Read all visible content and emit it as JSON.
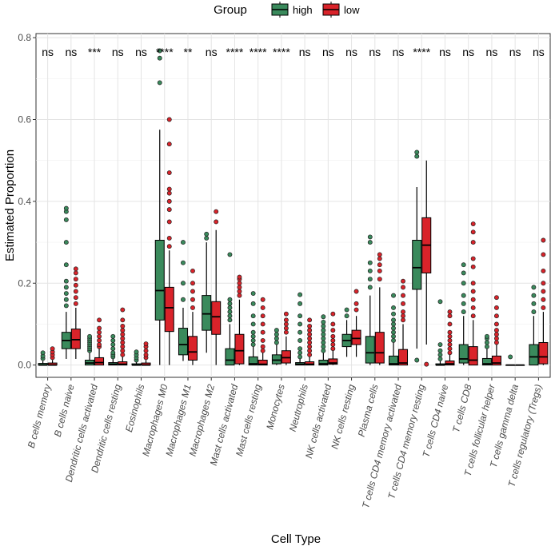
{
  "chart_data": {
    "type": "boxplot",
    "title": "",
    "xlabel": "Cell Type",
    "ylabel": "Estimated Proportion",
    "ylim": [
      -0.03,
      0.81
    ],
    "y_ticks": [
      0.0,
      0.2,
      0.4,
      0.6,
      0.8
    ],
    "y_tick_labels": [
      "0.0",
      "0.2",
      "0.4",
      "0.6",
      "0.8"
    ],
    "legend": {
      "title": "Group",
      "position": "top",
      "entries": [
        {
          "name": "high",
          "color": "#3a8a5c"
        },
        {
          "name": "low",
          "color": "#d9232a"
        }
      ]
    },
    "categories": [
      "B cells memory",
      "B cells naive",
      "Dendritic cells activated",
      "Dendritic cells resting",
      "Eosinophils",
      "Macrophages M0",
      "Macrophages M1",
      "Macrophages M2",
      "Mast cells activated",
      "Mast cells resting",
      "Monocytes",
      "Neutrophils",
      "NK cells activated",
      "NK cells resting",
      "Plasma cells",
      "T cells CD4 memory activated",
      "T cells CD4 memory resting",
      "T cells CD4 naive",
      "T cells CD8",
      "T cells follicular helper",
      "T cells gamma delta",
      "T cells regulatory (Tregs)"
    ],
    "significance": [
      "ns",
      "ns",
      "***",
      "ns",
      "ns",
      "****",
      "**",
      "ns",
      "****",
      "****",
      "****",
      "ns",
      "ns",
      "ns",
      "ns",
      "ns",
      "****",
      "ns",
      "ns",
      "ns",
      "ns",
      "ns"
    ],
    "series": [
      {
        "name": "high",
        "boxes": [
          {
            "min": 0,
            "q1": 0,
            "median": 0,
            "q3": 0.004,
            "max": 0.01,
            "outliers": [
              0.016,
              0.022,
              0.03
            ]
          },
          {
            "min": 0.015,
            "q1": 0.04,
            "median": 0.06,
            "q3": 0.08,
            "max": 0.13,
            "outliers": [
              0.145,
              0.16,
              0.175,
              0.19,
              0.205,
              0.245,
              0.3,
              0.355,
              0.375,
              0.383
            ]
          },
          {
            "min": 0,
            "q1": 0,
            "median": 0.005,
            "q3": 0.012,
            "max": 0.03,
            "outliers": [
              0.035,
              0.04,
              0.045,
              0.05,
              0.055,
              0.06,
              0.065,
              0.07
            ]
          },
          {
            "min": 0,
            "q1": 0,
            "median": 0.002,
            "q3": 0.006,
            "max": 0.015,
            "outliers": [
              0.02,
              0.025,
              0.03,
              0.04,
              0.05,
              0.06,
              0.07
            ]
          },
          {
            "min": 0,
            "q1": 0,
            "median": 0,
            "q3": 0.003,
            "max": 0.008,
            "outliers": [
              0.012,
              0.018,
              0.025,
              0.032
            ]
          },
          {
            "min": 0,
            "q1": 0.11,
            "median": 0.182,
            "q3": 0.305,
            "max": 0.575,
            "outliers": [
              0.69,
              0.75,
              0.768
            ]
          },
          {
            "min": 0.01,
            "q1": 0.025,
            "median": 0.05,
            "q3": 0.09,
            "max": 0.14,
            "outliers": [
              0.16,
              0.2,
              0.25,
              0.3
            ]
          },
          {
            "min": 0.03,
            "q1": 0.085,
            "median": 0.125,
            "q3": 0.17,
            "max": 0.3,
            "outliers": [
              0.31,
              0.32
            ]
          },
          {
            "min": 0,
            "q1": 0,
            "median": 0.012,
            "q3": 0.04,
            "max": 0.1,
            "outliers": [
              0.11,
              0.12,
              0.13,
              0.14,
              0.15,
              0.16,
              0.27
            ]
          },
          {
            "min": 0,
            "q1": 0,
            "median": 0.003,
            "q3": 0.02,
            "max": 0.045,
            "outliers": [
              0.05,
              0.06,
              0.07,
              0.08,
              0.1,
              0.12,
              0.15,
              0.175
            ]
          },
          {
            "min": 0,
            "q1": 0.003,
            "median": 0.012,
            "q3": 0.025,
            "max": 0.05,
            "outliers": [
              0.055,
              0.065,
              0.075,
              0.085
            ]
          },
          {
            "min": 0,
            "q1": 0,
            "median": 0.002,
            "q3": 0.006,
            "max": 0.015,
            "outliers": [
              0.02,
              0.03,
              0.04,
              0.06,
              0.08,
              0.1,
              0.12,
              0.15,
              0.172
            ]
          },
          {
            "min": 0,
            "q1": 0,
            "median": 0.003,
            "q3": 0.012,
            "max": 0.03,
            "outliers": [
              0.035,
              0.045,
              0.055,
              0.065,
              0.075,
              0.085,
              0.095,
              0.105,
              0.118
            ]
          },
          {
            "min": 0.02,
            "q1": 0.045,
            "median": 0.06,
            "q3": 0.075,
            "max": 0.11,
            "outliers": [
              0.12,
              0.135
            ]
          },
          {
            "min": 0,
            "q1": 0.005,
            "median": 0.03,
            "q3": 0.07,
            "max": 0.17,
            "outliers": [
              0.19,
              0.21,
              0.23,
              0.25,
              0.3,
              0.313
            ]
          },
          {
            "min": 0,
            "q1": 0,
            "median": 0.003,
            "q3": 0.022,
            "max": 0.055,
            "outliers": [
              0.06,
              0.07,
              0.08,
              0.09,
              0.1,
              0.11,
              0.125,
              0.14,
              0.17
            ]
          },
          {
            "min": 0.04,
            "q1": 0.185,
            "median": 0.238,
            "q3": 0.305,
            "max": 0.435,
            "outliers": [
              0.012,
              0.51,
              0.52
            ]
          },
          {
            "min": 0,
            "q1": 0,
            "median": 0,
            "q3": 0.003,
            "max": 0.01,
            "outliers": [
              0.015,
              0.025,
              0.035,
              0.05,
              0.155
            ]
          },
          {
            "min": 0,
            "q1": 0.005,
            "median": 0.015,
            "q3": 0.05,
            "max": 0.12,
            "outliers": [
              0.13,
              0.15,
              0.17,
              0.2,
              0.225,
              0.245
            ]
          },
          {
            "min": 0,
            "q1": 0,
            "median": 0.003,
            "q3": 0.016,
            "max": 0.04,
            "outliers": [
              0.045,
              0.055,
              0.065,
              0.07
            ]
          },
          {
            "min": 0,
            "q1": 0,
            "median": 0,
            "q3": 0,
            "max": 0,
            "outliers": [
              0.02
            ]
          },
          {
            "min": 0,
            "q1": 0,
            "median": 0.02,
            "q3": 0.05,
            "max": 0.12,
            "outliers": [
              0.13,
              0.15,
              0.17,
              0.19
            ]
          }
        ]
      },
      {
        "name": "low",
        "boxes": [
          {
            "min": 0,
            "q1": 0,
            "median": 0,
            "q3": 0.005,
            "max": 0.012,
            "outliers": [
              0.018,
              0.025,
              0.032,
              0.04
            ]
          },
          {
            "min": 0.015,
            "q1": 0.04,
            "median": 0.062,
            "q3": 0.088,
            "max": 0.14,
            "outliers": [
              0.15,
              0.165,
              0.18,
              0.195,
              0.21,
              0.225,
              0.235
            ]
          },
          {
            "min": 0,
            "q1": 0,
            "median": 0.006,
            "q3": 0.018,
            "max": 0.04,
            "outliers": [
              0.045,
              0.05,
              0.06,
              0.07,
              0.08,
              0.09,
              0.11
            ]
          },
          {
            "min": 0,
            "q1": 0,
            "median": 0.002,
            "q3": 0.008,
            "max": 0.02,
            "outliers": [
              0.025,
              0.035,
              0.045,
              0.055,
              0.065,
              0.075,
              0.085,
              0.095,
              0.11,
              0.135
            ]
          },
          {
            "min": 0,
            "q1": 0,
            "median": 0,
            "q3": 0.005,
            "max": 0.012,
            "outliers": [
              0.018,
              0.025,
              0.035,
              0.045,
              0.052
            ]
          },
          {
            "min": 0,
            "q1": 0.082,
            "median": 0.14,
            "q3": 0.19,
            "max": 0.28,
            "outliers": [
              0.29,
              0.31,
              0.35,
              0.38,
              0.4,
              0.42,
              0.43,
              0.47,
              0.54,
              0.6
            ]
          },
          {
            "min": 0,
            "q1": 0.012,
            "median": 0.032,
            "q3": 0.07,
            "max": 0.13,
            "outliers": [
              0.14,
              0.16,
              0.18,
              0.2,
              0.23
            ]
          },
          {
            "min": 0,
            "q1": 0.075,
            "median": 0.118,
            "q3": 0.155,
            "max": 0.33,
            "outliers": [
              0.35,
              0.375
            ]
          },
          {
            "min": 0,
            "q1": 0.003,
            "median": 0.035,
            "q3": 0.075,
            "max": 0.16,
            "outliers": [
              0.17,
              0.18,
              0.19,
              0.2,
              0.21,
              0.215
            ]
          },
          {
            "min": 0,
            "q1": 0,
            "median": 0.002,
            "q3": 0.012,
            "max": 0.03,
            "outliers": [
              0.035,
              0.045,
              0.06,
              0.08,
              0.1,
              0.12,
              0.14,
              0.16
            ]
          },
          {
            "min": 0,
            "q1": 0.005,
            "median": 0.018,
            "q3": 0.035,
            "max": 0.07,
            "outliers": [
              0.08,
              0.09,
              0.1,
              0.11,
              0.125
            ]
          },
          {
            "min": 0,
            "q1": 0,
            "median": 0.002,
            "q3": 0.008,
            "max": 0.02,
            "outliers": [
              0.025,
              0.035,
              0.045,
              0.055,
              0.065,
              0.075,
              0.085,
              0.095,
              0.11
            ]
          },
          {
            "min": 0,
            "q1": 0.002,
            "median": 0.005,
            "q3": 0.015,
            "max": 0.035,
            "outliers": [
              0.04,
              0.05,
              0.06,
              0.07,
              0.085,
              0.1,
              0.125
            ]
          },
          {
            "min": 0.02,
            "q1": 0.05,
            "median": 0.065,
            "q3": 0.085,
            "max": 0.12,
            "outliers": [
              0.135,
              0.15,
              0.18
            ]
          },
          {
            "min": 0,
            "q1": 0.005,
            "median": 0.03,
            "q3": 0.08,
            "max": 0.19,
            "outliers": [
              0.21,
              0.23,
              0.245,
              0.26,
              0.27
            ]
          },
          {
            "min": 0,
            "q1": 0,
            "median": 0.005,
            "q3": 0.038,
            "max": 0.1,
            "outliers": [
              0.11,
              0.12,
              0.13,
              0.15,
              0.17,
              0.19,
              0.205
            ]
          },
          {
            "min": 0.05,
            "q1": 0.225,
            "median": 0.293,
            "q3": 0.36,
            "max": 0.5,
            "outliers": [
              0.002
            ]
          },
          {
            "min": 0,
            "q1": 0,
            "median": 0.003,
            "q3": 0.01,
            "max": 0.025,
            "outliers": [
              0.03,
              0.04,
              0.05,
              0.06,
              0.07,
              0.08,
              0.1,
              0.12,
              0.13
            ]
          },
          {
            "min": 0,
            "q1": 0,
            "median": 0.012,
            "q3": 0.045,
            "max": 0.11,
            "outliers": [
              0.12,
              0.14,
              0.16,
              0.18,
              0.2,
              0.24,
              0.26,
              0.3,
              0.325,
              0.345
            ]
          },
          {
            "min": 0,
            "q1": 0,
            "median": 0.005,
            "q3": 0.022,
            "max": 0.05,
            "outliers": [
              0.055,
              0.065,
              0.075,
              0.085,
              0.1,
              0.12,
              0.14,
              0.165
            ]
          },
          {
            "min": 0,
            "q1": 0,
            "median": 0,
            "q3": 0,
            "max": 0,
            "outliers": []
          },
          {
            "min": 0,
            "q1": 0.003,
            "median": 0.02,
            "q3": 0.055,
            "max": 0.13,
            "outliers": [
              0.14,
              0.16,
              0.18,
              0.2,
              0.23,
              0.27,
              0.305
            ]
          }
        ]
      }
    ]
  }
}
